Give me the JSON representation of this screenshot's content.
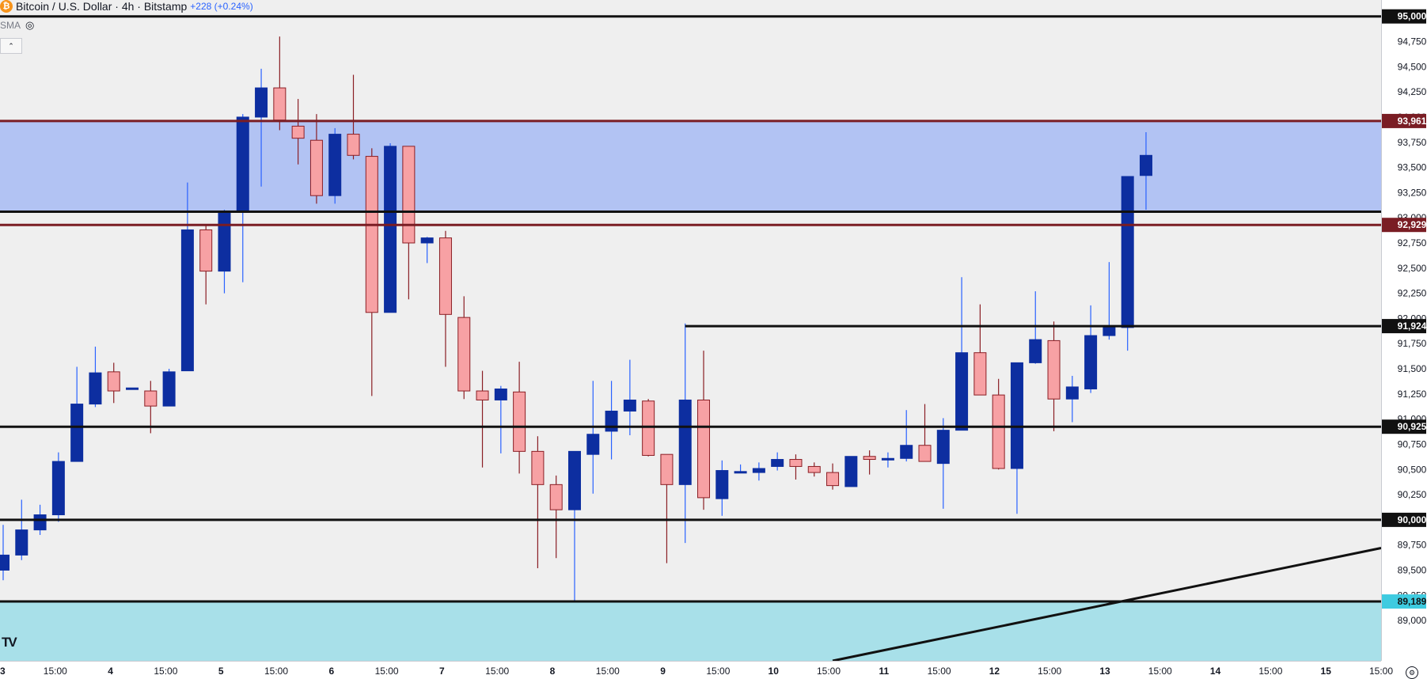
{
  "header": {
    "symbol_icon": "bitcoin-icon",
    "symbol_icon_glyph": "₿",
    "title": "Bitcoin / U.S. Dollar · 4h · Bitstamp",
    "change": "+228 (+0.24%)",
    "indicator": "SMA",
    "indicator_icon": "eye-hidden-icon"
  },
  "logo": {
    "text": "TV",
    "icon": "tradingview-logo"
  },
  "colors": {
    "up": "#0d2ea0",
    "down": "#f7a1a4",
    "down_border": "#8a1e24",
    "wick_up": "#2962ff",
    "wick_down": "#8a1e24",
    "zone_blue": "#b2c3f3",
    "zone_cyan": "#a8e0e9",
    "axis_bg": "#ffffff"
  },
  "chart_data": {
    "type": "candlestick",
    "title": "Bitcoin / U.S. Dollar · 4h · Bitstamp",
    "ylim": [
      88600,
      95100
    ],
    "y_ticks": [
      89000,
      89250,
      89500,
      89750,
      90000,
      90250,
      90500,
      90750,
      91000,
      91250,
      91500,
      91750,
      92000,
      92250,
      92500,
      92750,
      93000,
      93250,
      93500,
      93750,
      94000,
      94250,
      94500,
      94750,
      95000
    ],
    "x_ticks": [
      "3",
      "15:00",
      "4",
      "15:00",
      "5",
      "15:00",
      "6",
      "15:00",
      "7",
      "15:00",
      "8",
      "15:00",
      "9",
      "15:00",
      "10",
      "15:00",
      "11",
      "15:00",
      "12",
      "15:00",
      "13",
      "15:00",
      "14",
      "15:00",
      "15",
      "15:00"
    ],
    "x_tick_bold": [
      true,
      false,
      true,
      false,
      true,
      false,
      true,
      false,
      true,
      false,
      true,
      false,
      true,
      false,
      true,
      false,
      true,
      false,
      true,
      false,
      true,
      false,
      true,
      false,
      true,
      false
    ],
    "candles": [
      {
        "o": 89500,
        "h": 89950,
        "l": 89400,
        "c": 89650
      },
      {
        "o": 89650,
        "h": 90200,
        "l": 89600,
        "c": 89900
      },
      {
        "o": 89900,
        "h": 90150,
        "l": 89850,
        "c": 90050
      },
      {
        "o": 90050,
        "h": 90670,
        "l": 89980,
        "c": 90580
      },
      {
        "o": 90580,
        "h": 91520,
        "l": 90580,
        "c": 91150
      },
      {
        "o": 91150,
        "h": 91720,
        "l": 91120,
        "c": 91460
      },
      {
        "o": 91470,
        "h": 91560,
        "l": 91160,
        "c": 91280
      },
      {
        "o": 91310,
        "h": 91310,
        "l": 91300,
        "c": 91310
      },
      {
        "o": 91280,
        "h": 91380,
        "l": 90860,
        "c": 91130
      },
      {
        "o": 91130,
        "h": 91500,
        "l": 91130,
        "c": 91470
      },
      {
        "o": 91480,
        "h": 93350,
        "l": 91480,
        "c": 92880
      },
      {
        "o": 92880,
        "h": 92930,
        "l": 92140,
        "c": 92470
      },
      {
        "o": 92470,
        "h": 93080,
        "l": 92250,
        "c": 93060
      },
      {
        "o": 93060,
        "h": 94030,
        "l": 92360,
        "c": 94000
      },
      {
        "o": 94000,
        "h": 94480,
        "l": 93310,
        "c": 94290
      },
      {
        "o": 94290,
        "h": 94800,
        "l": 93870,
        "c": 93970
      },
      {
        "o": 93910,
        "h": 94180,
        "l": 93530,
        "c": 93790
      },
      {
        "o": 93770,
        "h": 94030,
        "l": 93140,
        "c": 93220
      },
      {
        "o": 93220,
        "h": 93890,
        "l": 93140,
        "c": 93830
      },
      {
        "o": 93830,
        "h": 94420,
        "l": 93580,
        "c": 93620
      },
      {
        "o": 93610,
        "h": 93690,
        "l": 91230,
        "c": 92060
      },
      {
        "o": 92060,
        "h": 93740,
        "l": 92060,
        "c": 93710
      },
      {
        "o": 93710,
        "h": 93700,
        "l": 92190,
        "c": 92750
      },
      {
        "o": 92750,
        "h": 92810,
        "l": 92550,
        "c": 92800
      },
      {
        "o": 92800,
        "h": 92870,
        "l": 91520,
        "c": 92040
      },
      {
        "o": 92010,
        "h": 92220,
        "l": 91200,
        "c": 91280
      },
      {
        "o": 91280,
        "h": 91480,
        "l": 90520,
        "c": 91190
      },
      {
        "o": 91190,
        "h": 91330,
        "l": 90660,
        "c": 91300
      },
      {
        "o": 91270,
        "h": 91570,
        "l": 90460,
        "c": 90680
      },
      {
        "o": 90680,
        "h": 90830,
        "l": 89520,
        "c": 90350
      },
      {
        "o": 90350,
        "h": 90440,
        "l": 89620,
        "c": 90100
      },
      {
        "o": 90100,
        "h": 90680,
        "l": 89200,
        "c": 90680
      },
      {
        "o": 90650,
        "h": 91380,
        "l": 90260,
        "c": 90850
      },
      {
        "o": 90880,
        "h": 91380,
        "l": 90600,
        "c": 91080
      },
      {
        "o": 91080,
        "h": 91590,
        "l": 90840,
        "c": 91190
      },
      {
        "o": 91180,
        "h": 91200,
        "l": 90630,
        "c": 90640
      },
      {
        "o": 90650,
        "h": 90650,
        "l": 89570,
        "c": 90350
      },
      {
        "o": 90350,
        "h": 91950,
        "l": 89770,
        "c": 91190
      },
      {
        "o": 91190,
        "h": 91680,
        "l": 90100,
        "c": 90220
      },
      {
        "o": 90210,
        "h": 90590,
        "l": 90040,
        "c": 90490
      },
      {
        "o": 90480,
        "h": 90550,
        "l": 90470,
        "c": 90480
      },
      {
        "o": 90470,
        "h": 90570,
        "l": 90390,
        "c": 90510
      },
      {
        "o": 90530,
        "h": 90670,
        "l": 90490,
        "c": 90600
      },
      {
        "o": 90600,
        "h": 90650,
        "l": 90400,
        "c": 90530
      },
      {
        "o": 90530,
        "h": 90570,
        "l": 90430,
        "c": 90470
      },
      {
        "o": 90470,
        "h": 90560,
        "l": 90300,
        "c": 90340
      },
      {
        "o": 90330,
        "h": 90630,
        "l": 90330,
        "c": 90630
      },
      {
        "o": 90630,
        "h": 90690,
        "l": 90450,
        "c": 90600
      },
      {
        "o": 90600,
        "h": 90670,
        "l": 90520,
        "c": 90610
      },
      {
        "o": 90610,
        "h": 91090,
        "l": 90580,
        "c": 90740
      },
      {
        "o": 90740,
        "h": 91150,
        "l": 90580,
        "c": 90580
      },
      {
        "o": 90560,
        "h": 91010,
        "l": 90110,
        "c": 90890
      },
      {
        "o": 90890,
        "h": 92410,
        "l": 90890,
        "c": 91660
      },
      {
        "o": 91660,
        "h": 92140,
        "l": 91240,
        "c": 91240
      },
      {
        "o": 91240,
        "h": 91400,
        "l": 90500,
        "c": 90510
      },
      {
        "o": 90510,
        "h": 91560,
        "l": 90060,
        "c": 91560
      },
      {
        "o": 91560,
        "h": 92270,
        "l": 91550,
        "c": 91790
      },
      {
        "o": 91780,
        "h": 91970,
        "l": 90880,
        "c": 91200
      },
      {
        "o": 91200,
        "h": 91430,
        "l": 90970,
        "c": 91320
      },
      {
        "o": 91300,
        "h": 92130,
        "l": 91260,
        "c": 91830
      },
      {
        "o": 91830,
        "h": 92560,
        "l": 91790,
        "c": 91910
      },
      {
        "o": 91910,
        "h": 93410,
        "l": 91680,
        "c": 93410
      },
      {
        "o": 93420,
        "h": 93850,
        "l": 93080,
        "c": 93620
      }
    ],
    "zones": [
      {
        "from": 93060,
        "to": 93961,
        "color": "zone_blue"
      },
      {
        "from": 88600,
        "to": 89189,
        "color": "zone_cyan"
      }
    ],
    "levels": [
      {
        "price": 95000,
        "label": "95,000",
        "tag": "black",
        "line": "black"
      },
      {
        "price": 93961,
        "label": "93,961",
        "tag": "maroon",
        "line": "maroon"
      },
      {
        "price": 93060,
        "label": "",
        "tag": "none",
        "line": "black"
      },
      {
        "price": 92929,
        "label": "92,929",
        "tag": "maroon",
        "line": "maroon"
      },
      {
        "price": 91924,
        "label": "91,924",
        "tag": "black",
        "line": "black",
        "from_candle": 37
      },
      {
        "price": 90925,
        "label": "90,925",
        "tag": "black",
        "line": "black"
      },
      {
        "price": 90000,
        "label": "90,000",
        "tag": "black",
        "line": "black"
      },
      {
        "price": 89189,
        "label": "89,189",
        "tag": "cyan",
        "line": "black"
      }
    ],
    "trendline": {
      "from_candle": 45,
      "from_price": 88600,
      "to_price": 89720
    }
  }
}
